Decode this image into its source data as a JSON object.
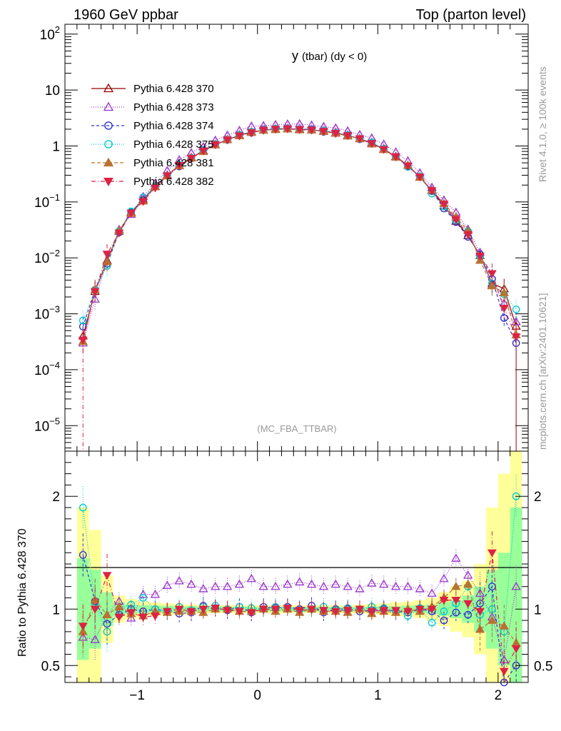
{
  "header": {
    "left": "1960 GeV ppbar",
    "right": "Top (parton level)"
  },
  "side_labels": {
    "rivet": "Rivet 4.1.0, ≥ 100k events",
    "mcplots": "mcplots.cern.ch [arXiv:2401.10621]"
  },
  "colors": {
    "band_yellow": "#ffff99",
    "band_green": "#99ff99"
  },
  "chart_data": [
    {
      "type": "line",
      "panel": "main",
      "title_main": "y",
      "title_sub": "(tbar) (dy < 0)",
      "watermark": "(MC_FBA_TTBAR)",
      "yscale": "log",
      "xlim": [
        -1.6,
        2.25
      ],
      "ylim": [
        3.5e-06,
        150
      ],
      "x_ticks": [
        -1,
        0,
        1,
        2
      ],
      "x_tick_labels": [
        "−1",
        "0",
        "1",
        "2"
      ],
      "y_ticks": [
        100,
        10,
        1,
        0.1,
        0.01,
        0.001,
        0.0001,
        1e-05
      ],
      "y_tick_labels": [
        {
          "base": "10",
          "exp": "2"
        },
        {
          "base": "10",
          "exp": ""
        },
        {
          "base": "1",
          "exp": ""
        },
        {
          "base": "10",
          "exp": "−1"
        },
        {
          "base": "10",
          "exp": "−2"
        },
        {
          "base": "10",
          "exp": "−3"
        },
        {
          "base": "10",
          "exp": "−4"
        },
        {
          "base": "10",
          "exp": "−5"
        }
      ],
      "x": [
        -1.45,
        -1.35,
        -1.25,
        -1.15,
        -1.05,
        -0.95,
        -0.85,
        -0.75,
        -0.65,
        -0.55,
        -0.45,
        -0.35,
        -0.25,
        -0.15,
        -0.05,
        0.05,
        0.15,
        0.25,
        0.35,
        0.45,
        0.55,
        0.65,
        0.75,
        0.85,
        0.95,
        1.05,
        1.15,
        1.25,
        1.35,
        1.45,
        1.55,
        1.65,
        1.75,
        1.85,
        1.95,
        2.05,
        2.15
      ],
      "reference": [
        0.0004,
        0.0025,
        0.009,
        0.03,
        0.065,
        0.11,
        0.19,
        0.3,
        0.45,
        0.62,
        0.82,
        1.05,
        1.3,
        1.55,
        1.78,
        1.92,
        2.0,
        2.02,
        2.0,
        1.93,
        1.85,
        1.72,
        1.55,
        1.35,
        1.13,
        0.88,
        0.65,
        0.45,
        0.28,
        0.16,
        0.085,
        0.045,
        0.025,
        0.011,
        0.0035,
        0.0028,
        0.0006
      ],
      "series": [
        {
          "name": "Pythia 6.428 370",
          "color": "#990000",
          "marker": "triangle-open",
          "dash": "",
          "ratio": [
            1,
            1,
            1,
            1,
            1,
            1,
            1,
            1,
            1,
            1,
            1,
            1,
            1,
            1,
            1,
            1,
            1,
            1,
            1,
            1,
            1,
            1,
            1,
            1,
            1,
            1,
            1,
            1,
            1,
            1,
            1,
            1,
            1,
            1,
            1,
            1,
            1
          ]
        },
        {
          "name": "Pythia 6.428 373",
          "color": "#9933cc",
          "marker": "triangle-open",
          "dash": "1,2",
          "ratio": [
            0.75,
            0.73,
            0.95,
            1.07,
            0.92,
            1.13,
            1.13,
            1.21,
            1.25,
            1.22,
            1.18,
            1.2,
            1.2,
            1.22,
            1.27,
            1.2,
            1.2,
            1.22,
            1.24,
            1.22,
            1.2,
            1.22,
            1.2,
            1.18,
            1.23,
            1.22,
            1.2,
            1.2,
            1.18,
            1.14,
            1.27,
            1.45,
            1.3,
            1.14,
            0.93,
            0.55,
            1.2
          ]
        },
        {
          "name": "Pythia 6.428 374",
          "color": "#3333cc",
          "marker": "circle-open",
          "dash": "4,3",
          "ratio": [
            1.48,
            1.07,
            0.87,
            0.95,
            1.0,
            0.98,
            1.0,
            0.98,
            0.96,
            0.97,
            1.03,
            1.01,
            0.99,
            1.02,
            0.97,
            1.02,
            1.01,
            1.02,
            1.0,
            1.03,
            0.97,
            1.0,
            1.0,
            0.98,
            0.99,
            1.0,
            0.98,
            0.97,
            1.0,
            0.98,
            0.9,
            0.97,
            0.95,
            1.05,
            1.2,
            0.3,
            0.5
          ]
        },
        {
          "name": "Pythia 6.428 375",
          "color": "#00cccc",
          "marker": "circle-open",
          "dash": "1,2",
          "ratio": [
            1.9,
            1.05,
            0.8,
            1.0,
            1.04,
            1.1,
            1.0,
            0.98,
            1.02,
            0.99,
            1.02,
            1.03,
            1.0,
            1.02,
            1.01,
            1.0,
            1.02,
            1.01,
            0.99,
            1.0,
            1.02,
            0.99,
            1.01,
            1.0,
            1.02,
            1.01,
            0.98,
            0.94,
            1.01,
            0.88,
            0.98,
            1.05,
            1.2,
            0.95,
            1.0,
            0.8,
            2.0
          ]
        },
        {
          "name": "Pythia 6.428 381",
          "color": "#b87333",
          "marker": "triangle-filled",
          "dash": "5,3",
          "ratio": [
            0.8,
            1.08,
            0.95,
            1.02,
            0.96,
            0.94,
            0.98,
            0.97,
            0.98,
            0.98,
            0.97,
            1.0,
            1.0,
            0.98,
            0.98,
            1.0,
            0.98,
            1.0,
            0.97,
            1.0,
            0.98,
            0.98,
            0.97,
            1.0,
            0.96,
            0.98,
            0.97,
            1.0,
            0.98,
            1.02,
            1.1,
            1.2,
            1.22,
            0.82,
            0.9,
            0.85,
            0.7
          ]
        },
        {
          "name": "Pythia 6.428 382",
          "color": "#dd2244",
          "marker": "triangle-down-filled",
          "dash": "6,3,1,3",
          "ratio": [
            0.85,
            1.0,
            1.3,
            0.93,
            0.97,
            0.93,
            0.94,
            0.98,
            1.0,
            0.98,
            1.0,
            1.01,
            0.99,
            0.98,
            0.97,
            1.0,
            1.0,
            1.01,
            0.99,
            1.0,
            0.99,
            0.98,
            0.99,
            1.0,
            0.98,
            0.99,
            0.99,
            0.98,
            1.0,
            1.0,
            1.08,
            1.08,
            1.05,
            0.98,
            1.5,
            0.45,
            0.65
          ]
        }
      ]
    },
    {
      "type": "line",
      "panel": "ratio",
      "ylabel": "Ratio to Pythia 6.428 370",
      "ylim": [
        0.35,
        2.4
      ],
      "y_ticks": [
        0.5,
        1,
        2
      ],
      "y_tick_labels": [
        "0.5",
        "1",
        "2"
      ],
      "band_green_halfwidth": [
        0.45,
        0.35,
        0.15,
        0.06,
        0.04,
        0.035,
        0.03,
        0.03,
        0.025,
        0.025,
        0.02,
        0.02,
        0.02,
        0.02,
        0.02,
        0.02,
        0.02,
        0.02,
        0.02,
        0.02,
        0.02,
        0.02,
        0.02,
        0.02,
        0.02,
        0.025,
        0.025,
        0.03,
        0.035,
        0.04,
        0.06,
        0.08,
        0.12,
        0.2,
        0.35,
        0.5,
        0.9
      ],
      "band_yellow_halfwidth": [
        0.9,
        0.7,
        0.3,
        0.12,
        0.09,
        0.07,
        0.06,
        0.05,
        0.045,
        0.04,
        0.04,
        0.035,
        0.035,
        0.035,
        0.035,
        0.035,
        0.035,
        0.035,
        0.035,
        0.035,
        0.035,
        0.035,
        0.035,
        0.04,
        0.045,
        0.05,
        0.06,
        0.065,
        0.08,
        0.1,
        0.15,
        0.2,
        0.25,
        0.4,
        0.9,
        1.2,
        1.5
      ]
    }
  ]
}
